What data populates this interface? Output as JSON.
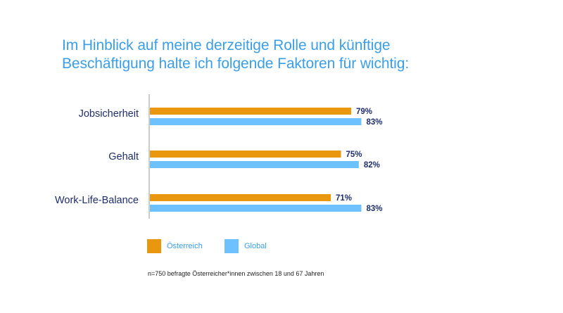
{
  "title": {
    "line1": "Im Hinblick auf meine derzeitige Rolle und künftige",
    "line2": "Beschäftigung halte ich folgende Faktoren für wichtig:"
  },
  "colors": {
    "austria": "#e8970e",
    "global": "#6ec1ff",
    "text": "#1f2d6b",
    "axis": "#bbbbbb"
  },
  "legend": {
    "austria": "Österreich",
    "global": "Global"
  },
  "footnote": "n=750 befragte Österreicher*innen zwischen 18 und 67 Jahren",
  "chart_data": {
    "type": "bar",
    "orientation": "horizontal",
    "title": "Im Hinblick auf meine derzeitige Rolle und künftige Beschäftigung halte ich folgende Faktoren für wichtig:",
    "categories": [
      "Jobsicherheit",
      "Gehalt",
      "Work-Life-Balance"
    ],
    "series": [
      {
        "name": "Österreich",
        "values": [
          79,
          75,
          71
        ],
        "labels": [
          "79%",
          "75%",
          "71%"
        ]
      },
      {
        "name": "Global",
        "values": [
          83,
          82,
          83
        ],
        "labels": [
          "83%",
          "82%",
          "83%"
        ]
      }
    ],
    "xlim": [
      0,
      100
    ],
    "unit": "%",
    "grid": false,
    "legend_position": "bottom"
  }
}
